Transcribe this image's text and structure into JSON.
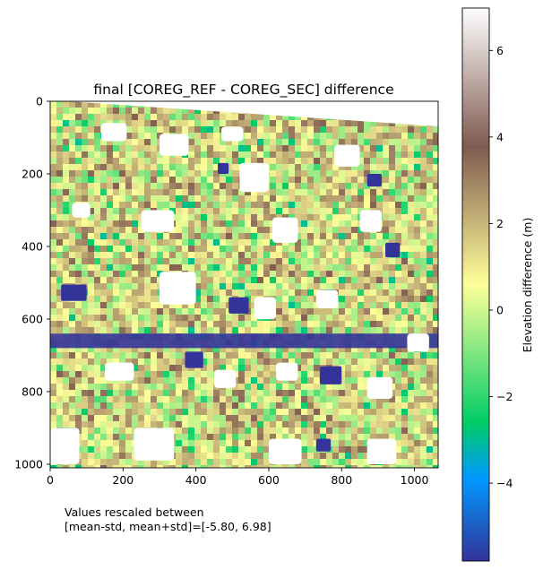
{
  "chart_data": {
    "type": "heatmap",
    "title": "final [COREG_REF - COREG_SEC] difference",
    "xlabel": "",
    "ylabel": "",
    "xlim": [
      0,
      1065
    ],
    "ylim": [
      1010,
      0
    ],
    "x_ticks": [
      "0",
      "200",
      "400",
      "600",
      "800",
      "1000"
    ],
    "y_ticks": [
      "0",
      "200",
      "400",
      "600",
      "800",
      "1000"
    ],
    "x_tick_values": [
      0,
      200,
      400,
      600,
      800,
      1000
    ],
    "y_tick_values": [
      0,
      200,
      400,
      600,
      800,
      1000
    ],
    "colorbar": {
      "label": "Elevation difference (m)",
      "range": [
        -5.8,
        6.98
      ],
      "tick_values": [
        -4,
        -2,
        0,
        2,
        4,
        6
      ],
      "tick_labels": [
        "−4",
        "−2",
        "0",
        "2",
        "4",
        "6"
      ],
      "colormap": "terrain",
      "color_stops": [
        {
          "v": 0.0,
          "c": "#333399"
        },
        {
          "v": 0.15,
          "c": "#0099ff"
        },
        {
          "v": 0.25,
          "c": "#00cc66"
        },
        {
          "v": 0.5,
          "c": "#ffff99"
        },
        {
          "v": 0.75,
          "c": "#805a50"
        },
        {
          "v": 1.0,
          "c": "#ffffff"
        }
      ]
    },
    "data_summary": {
      "background_value_m": 0.8,
      "no_data_color": "#ffffff",
      "notes": "Elevation difference map; mostly values between -2 and 3 m, with large negative patches and white no-data building footprints."
    },
    "no_data_blocks": [
      {
        "x": 140,
        "y": 60,
        "w": 70,
        "h": 50
      },
      {
        "x": 300,
        "y": 90,
        "w": 80,
        "h": 60
      },
      {
        "x": 470,
        "y": 70,
        "w": 60,
        "h": 40
      },
      {
        "x": 520,
        "y": 170,
        "w": 80,
        "h": 80
      },
      {
        "x": 780,
        "y": 120,
        "w": 70,
        "h": 60
      },
      {
        "x": 60,
        "y": 280,
        "w": 50,
        "h": 40
      },
      {
        "x": 250,
        "y": 300,
        "w": 90,
        "h": 60
      },
      {
        "x": 610,
        "y": 320,
        "w": 70,
        "h": 70
      },
      {
        "x": 850,
        "y": 300,
        "w": 60,
        "h": 60
      },
      {
        "x": 300,
        "y": 470,
        "w": 100,
        "h": 90
      },
      {
        "x": 560,
        "y": 540,
        "w": 60,
        "h": 60
      },
      {
        "x": 730,
        "y": 520,
        "w": 60,
        "h": 50
      },
      {
        "x": 150,
        "y": 720,
        "w": 80,
        "h": 50
      },
      {
        "x": 450,
        "y": 740,
        "w": 60,
        "h": 50
      },
      {
        "x": 620,
        "y": 720,
        "w": 60,
        "h": 50
      },
      {
        "x": 870,
        "y": 760,
        "w": 70,
        "h": 60
      },
      {
        "x": 0,
        "y": 900,
        "w": 80,
        "h": 100
      },
      {
        "x": 230,
        "y": 900,
        "w": 110,
        "h": 90
      },
      {
        "x": 600,
        "y": 930,
        "w": 90,
        "h": 70
      },
      {
        "x": 870,
        "y": 930,
        "w": 80,
        "h": 70
      },
      {
        "x": 980,
        "y": 640,
        "w": 60,
        "h": 50
      }
    ],
    "negative_blocks": [
      {
        "x": 30,
        "y": 505,
        "w": 70,
        "h": 45
      },
      {
        "x": 490,
        "y": 540,
        "w": 55,
        "h": 45
      },
      {
        "x": 370,
        "y": 690,
        "w": 50,
        "h": 45
      },
      {
        "x": 740,
        "y": 730,
        "w": 60,
        "h": 50
      },
      {
        "x": 730,
        "y": 930,
        "w": 40,
        "h": 35
      },
      {
        "x": 460,
        "y": 170,
        "w": 30,
        "h": 30
      },
      {
        "x": 870,
        "y": 200,
        "w": 40,
        "h": 35
      },
      {
        "x": 920,
        "y": 390,
        "w": 40,
        "h": 40
      }
    ],
    "negative_band": {
      "y_center": 660,
      "thickness": 40
    }
  },
  "annotation": {
    "line1": "Values rescaled between",
    "line2": "[mean-std, mean+std]=[-5.80, 6.98]"
  }
}
